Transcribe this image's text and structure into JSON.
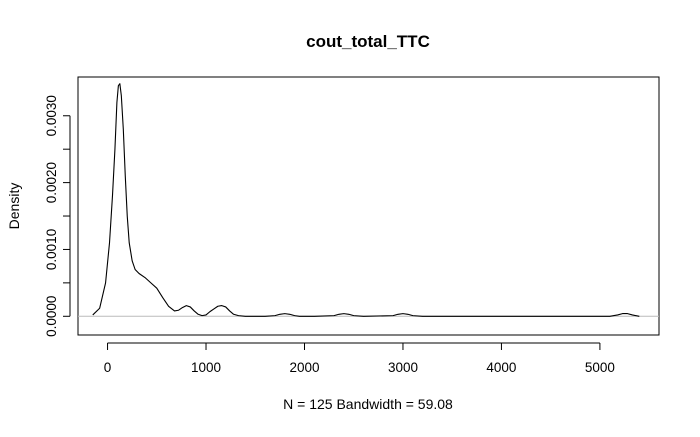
{
  "chart_data": {
    "type": "line",
    "title": "cout_total_TTC",
    "xlabel": "N = 125   Bandwidth = 59.08",
    "ylabel": "Density",
    "xlim": [
      -300,
      5600
    ],
    "ylim": [
      -0.00028,
      0.00358
    ],
    "x_ticks": [
      0,
      1000,
      2000,
      3000,
      4000,
      5000
    ],
    "x_tick_labels": [
      "0",
      "1000",
      "2000",
      "3000",
      "4000",
      "5000"
    ],
    "y_ticks": [
      0,
      0.0005,
      0.001,
      0.0015,
      0.002,
      0.0025,
      0.003
    ],
    "y_tick_labels": [
      "0.0000",
      "",
      "0.0010",
      "",
      "0.0020",
      "",
      "0.0030"
    ],
    "baseline": 0,
    "grid": false,
    "legend": "none",
    "series": [
      {
        "x": [
          -150,
          -80,
          -20,
          20,
          50,
          75,
          95,
          110,
          125,
          140,
          160,
          180,
          200,
          220,
          250,
          280,
          320,
          380,
          440,
          500,
          560,
          620,
          680,
          720,
          760,
          800,
          840,
          880,
          920,
          960,
          1000,
          1040,
          1080,
          1120,
          1160,
          1200,
          1240,
          1280,
          1330,
          1400,
          1600,
          1700,
          1750,
          1800,
          1850,
          1900,
          1950,
          2100,
          2300,
          2350,
          2400,
          2450,
          2500,
          2600,
          2900,
          2950,
          3000,
          3050,
          3100,
          3200,
          5100,
          5180,
          5230,
          5280,
          5330,
          5400
        ],
        "y": [
          2e-05,
          0.00012,
          0.0005,
          0.0011,
          0.0018,
          0.0025,
          0.0032,
          0.00345,
          0.00348,
          0.0033,
          0.0028,
          0.0021,
          0.0015,
          0.0011,
          0.00083,
          0.0007,
          0.00064,
          0.00058,
          0.0005,
          0.00042,
          0.00028,
          0.00015,
          8e-05,
          9e-05,
          0.00013,
          0.00016,
          0.00014,
          8e-05,
          3e-05,
          1e-05,
          2e-05,
          7e-05,
          0.00011,
          0.00015,
          0.00016,
          0.00014,
          8e-05,
          3e-05,
          1e-05,
          0.0,
          0.0,
          1e-05,
          3e-05,
          4e-05,
          3e-05,
          1e-05,
          0.0,
          0.0,
          1e-05,
          3e-05,
          4e-05,
          3e-05,
          1e-05,
          0.0,
          1e-05,
          3e-05,
          4e-05,
          3e-05,
          1e-05,
          0.0,
          0.0,
          2e-05,
          4e-05,
          4e-05,
          2e-05,
          0.0
        ]
      }
    ],
    "colors": {
      "line": "#000000",
      "baseline": "#bbbbbb",
      "axes": "#000000"
    }
  }
}
